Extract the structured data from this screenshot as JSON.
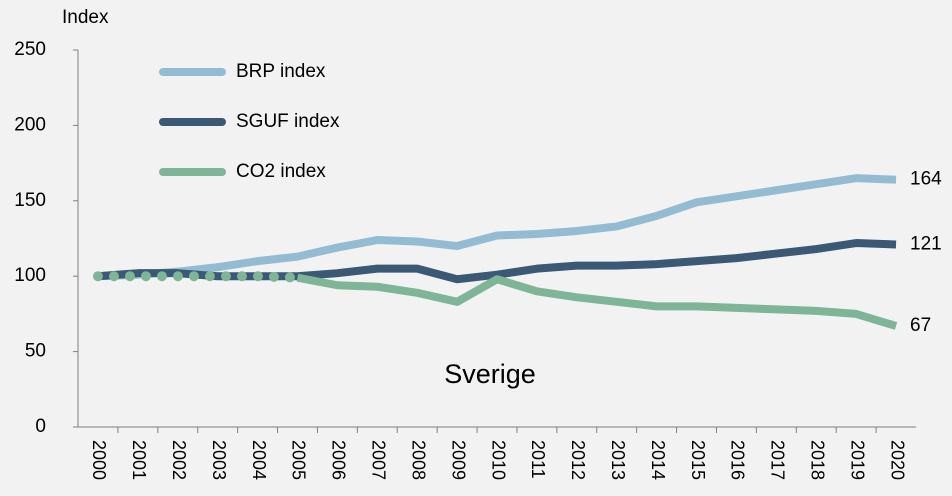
{
  "chart_data": {
    "type": "line",
    "y_label": "Index",
    "annotation": "Sverige",
    "categories": [
      "2000",
      "2001",
      "2002",
      "2003",
      "2004",
      "2005",
      "2006",
      "2007",
      "2008",
      "2009",
      "2010",
      "2011",
      "2012",
      "2013",
      "2014",
      "2015",
      "2016",
      "2017",
      "2018",
      "2019",
      "2020"
    ],
    "series": [
      {
        "name": "BRP index",
        "color": "#93bcd3",
        "values": [
          100,
          101,
          103,
          106,
          110,
          113,
          119,
          124,
          123,
          120,
          127,
          128,
          130,
          133,
          140,
          149,
          153,
          157,
          161,
          165,
          164
        ]
      },
      {
        "name": "SGUF index",
        "color": "#3b5875",
        "values": [
          100,
          102,
          102,
          100,
          100,
          100,
          102,
          105,
          105,
          98,
          101,
          105,
          107,
          107,
          108,
          110,
          112,
          115,
          118,
          122,
          121
        ]
      },
      {
        "name": "CO2 index",
        "color": "#7db596",
        "dotted_until": "2005",
        "values": [
          100,
          100,
          100,
          100,
          100,
          99,
          94,
          93,
          89,
          83,
          98,
          90,
          86,
          83,
          80,
          80,
          79,
          78,
          77,
          75,
          67
        ]
      }
    ],
    "end_labels": true,
    "ylim": [
      0,
      250
    ],
    "yticks": [
      0,
      50,
      100,
      150,
      200,
      250
    ],
    "legend": "top-left"
  }
}
